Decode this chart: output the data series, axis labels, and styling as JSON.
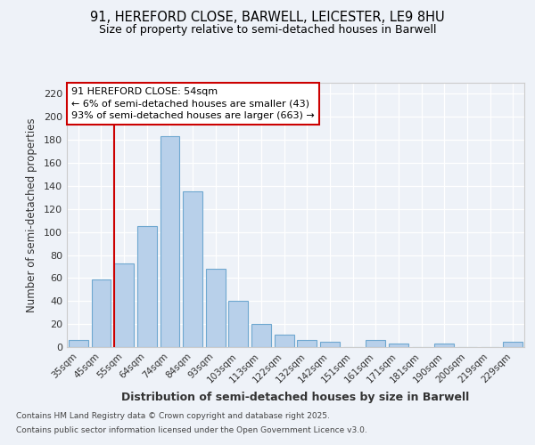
{
  "title1": "91, HEREFORD CLOSE, BARWELL, LEICESTER, LE9 8HU",
  "title2": "Size of property relative to semi-detached houses in Barwell",
  "xlabel": "Distribution of semi-detached houses by size in Barwell",
  "ylabel": "Number of semi-detached properties",
  "categories": [
    "35sqm",
    "45sqm",
    "55sqm",
    "64sqm",
    "74sqm",
    "84sqm",
    "93sqm",
    "103sqm",
    "113sqm",
    "122sqm",
    "132sqm",
    "142sqm",
    "151sqm",
    "161sqm",
    "171sqm",
    "181sqm",
    "190sqm",
    "200sqm",
    "219sqm",
    "229sqm"
  ],
  "values": [
    6,
    59,
    73,
    105,
    183,
    135,
    68,
    40,
    20,
    11,
    6,
    5,
    0,
    6,
    3,
    0,
    3,
    0,
    0,
    5
  ],
  "bar_color": "#b8d0ea",
  "bar_edge_color": "#6fa8d0",
  "annotation_title": "91 HEREFORD CLOSE: 54sqm",
  "annotation_line1": "← 6% of semi-detached houses are smaller (43)",
  "annotation_line2": "93% of semi-detached houses are larger (663) →",
  "annotation_box_color": "#ffffff",
  "annotation_box_edge": "#cc0000",
  "vline_color": "#cc0000",
  "vline_x_index": 2,
  "ylim": [
    0,
    230
  ],
  "yticks": [
    0,
    20,
    40,
    60,
    80,
    100,
    120,
    140,
    160,
    180,
    200,
    220
  ],
  "background_color": "#eef2f8",
  "grid_color": "#ffffff",
  "footer_line1": "Contains HM Land Registry data © Crown copyright and database right 2025.",
  "footer_line2": "Contains public sector information licensed under the Open Government Licence v3.0."
}
